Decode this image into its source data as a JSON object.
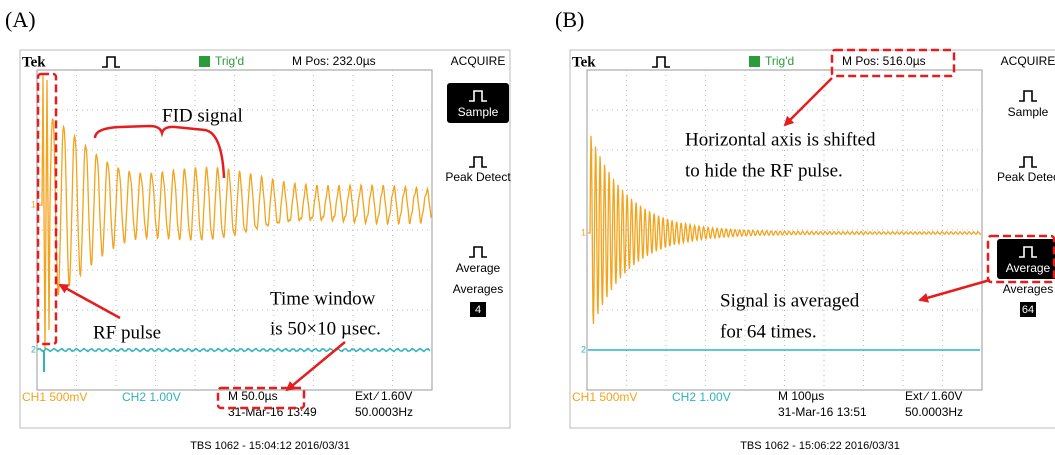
{
  "panels": [
    {
      "label": "(A)",
      "header": {
        "brand": "Tek",
        "trigger": "Trig'd",
        "position": "M Pos: 232.0µs",
        "menu": "ACQUIRE"
      },
      "menu_items": [
        "Sample",
        "Peak Detect",
        "Average",
        "Averages"
      ],
      "menu_selected": 0,
      "averages_value": "4",
      "footer": {
        "ch1": "CH1  500mV",
        "ch2": "CH2  1.00V",
        "timebase": "M 50.0µs",
        "datetime": "31-Mar-16 13:49",
        "trigger": "Ext ∕ 1.60V",
        "frequency": "50.0003Hz"
      },
      "caption": "TBS 1062 - 15:04:12  2016/03/31",
      "annotations": [
        "FID signal",
        "RF pulse",
        "Time window",
        "is 50×10 µsec."
      ]
    },
    {
      "label": "(B)",
      "header": {
        "brand": "Tek",
        "trigger": "Trig'd",
        "position": "M Pos: 516.0µs",
        "menu": "ACQUIRE"
      },
      "menu_items": [
        "Sample",
        "Peak Detec",
        "Average",
        "Averages"
      ],
      "menu_selected": 2,
      "averages_value": "64",
      "footer": {
        "ch1": "CH1  500mV",
        "ch2": "CH2  1.00V",
        "timebase": "M 100µs",
        "datetime": "31-Mar-16 13:51",
        "trigger": "Ext ∕ 1.60V",
        "frequency": "50.0003Hz"
      },
      "caption": "TBS 1062 - 15:06:22  2016/03/31",
      "annotations": [
        "Horizontal axis is shifted",
        "to hide the RF pulse.",
        "Signal  is  averaged",
        "for 64 times."
      ]
    }
  ]
}
